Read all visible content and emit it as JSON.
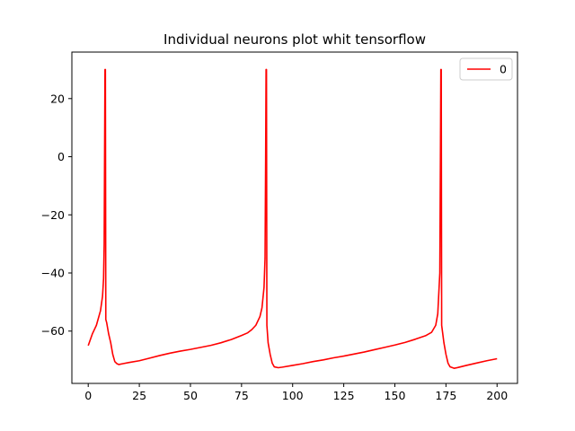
{
  "chart_data": {
    "type": "line",
    "title": "Individual neurons plot whit tensorflow",
    "xlabel": "",
    "ylabel": "",
    "xlim": [
      -8,
      210
    ],
    "ylim": [
      -78,
      36
    ],
    "xticks": [
      0,
      25,
      50,
      75,
      100,
      125,
      150,
      175,
      200
    ],
    "yticks": [
      -60,
      -40,
      -20,
      0,
      20
    ],
    "grid": false,
    "legend_position": "top-right",
    "series": [
      {
        "name": "0",
        "color": "#ff0000",
        "points": [
          [
            0,
            -65
          ],
          [
            2,
            -61
          ],
          [
            4,
            -58
          ],
          [
            6,
            -53
          ],
          [
            7,
            -48
          ],
          [
            7.5,
            -42
          ],
          [
            7.8,
            -30
          ],
          [
            8,
            0
          ],
          [
            8.2,
            30
          ],
          [
            8.4,
            30
          ],
          [
            8.6,
            -56
          ],
          [
            9,
            -57
          ],
          [
            10,
            -61
          ],
          [
            11,
            -64
          ],
          [
            12,
            -68
          ],
          [
            13,
            -70.5
          ],
          [
            14,
            -71.2
          ],
          [
            15,
            -71.5
          ],
          [
            17,
            -71.2
          ],
          [
            20,
            -70.8
          ],
          [
            25,
            -70.2
          ],
          [
            30,
            -69.3
          ],
          [
            35,
            -68.4
          ],
          [
            40,
            -67.6
          ],
          [
            45,
            -66.9
          ],
          [
            50,
            -66.3
          ],
          [
            55,
            -65.6
          ],
          [
            60,
            -64.9
          ],
          [
            65,
            -64.0
          ],
          [
            70,
            -62.9
          ],
          [
            75,
            -61.5
          ],
          [
            78,
            -60.6
          ],
          [
            80,
            -59.5
          ],
          [
            82,
            -58
          ],
          [
            84,
            -55
          ],
          [
            85,
            -52
          ],
          [
            86,
            -45
          ],
          [
            86.5,
            -35
          ],
          [
            86.8,
            0
          ],
          [
            87,
            30
          ],
          [
            87.2,
            30
          ],
          [
            87.4,
            -58
          ],
          [
            88,
            -64
          ],
          [
            89,
            -68
          ],
          [
            90,
            -71
          ],
          [
            91,
            -72.3
          ],
          [
            93,
            -72.6
          ],
          [
            95,
            -72.4
          ],
          [
            100,
            -71.8
          ],
          [
            105,
            -71.2
          ],
          [
            110,
            -70.5
          ],
          [
            115,
            -69.9
          ],
          [
            120,
            -69.2
          ],
          [
            125,
            -68.6
          ],
          [
            130,
            -67.9
          ],
          [
            135,
            -67.2
          ],
          [
            140,
            -66.4
          ],
          [
            145,
            -65.6
          ],
          [
            150,
            -64.8
          ],
          [
            155,
            -63.9
          ],
          [
            160,
            -62.8
          ],
          [
            165,
            -61.6
          ],
          [
            168,
            -60.4
          ],
          [
            170,
            -58
          ],
          [
            171,
            -54
          ],
          [
            172,
            -40
          ],
          [
            172.3,
            0
          ],
          [
            172.5,
            30
          ],
          [
            172.7,
            30
          ],
          [
            172.9,
            -58
          ],
          [
            174,
            -64
          ],
          [
            175,
            -68
          ],
          [
            176,
            -71
          ],
          [
            177,
            -72.3
          ],
          [
            179,
            -72.8
          ],
          [
            181,
            -72.5
          ],
          [
            185,
            -71.8
          ],
          [
            190,
            -71.0
          ],
          [
            195,
            -70.2
          ],
          [
            200,
            -69.5
          ]
        ]
      }
    ]
  }
}
